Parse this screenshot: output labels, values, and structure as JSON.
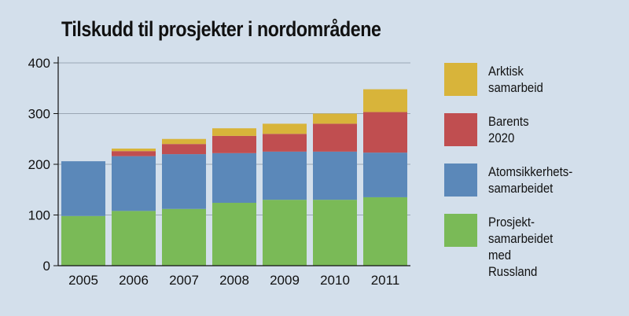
{
  "chart_data": {
    "type": "bar",
    "stacked": true,
    "title": "Tilskudd til prosjekter i nordområdene",
    "categories": [
      "2005",
      "2006",
      "2007",
      "2008",
      "2009",
      "2010",
      "2011"
    ],
    "ylim": [
      0,
      400
    ],
    "yticks": [
      "0",
      "100",
      "200",
      "300",
      "400"
    ],
    "grid": true,
    "legend_placement": "right",
    "series": [
      {
        "name": "Prosjekt-\nsamarbeidet\nmed Russland",
        "color": "#7aba57",
        "values": [
          98,
          108,
          112,
          124,
          130,
          130,
          135
        ]
      },
      {
        "name": "Atomsikkerhets-\nsamarbeidet",
        "color": "#5b88b9",
        "values": [
          108,
          108,
          108,
          98,
          95,
          95,
          88
        ]
      },
      {
        "name": "Barents 2020",
        "color": "#c04e50",
        "values": [
          0,
          10,
          20,
          34,
          35,
          55,
          80
        ]
      },
      {
        "name": "Arktisk samarbeid",
        "color": "#d8b43a",
        "values": [
          0,
          5,
          10,
          15,
          20,
          20,
          45
        ]
      }
    ]
  }
}
